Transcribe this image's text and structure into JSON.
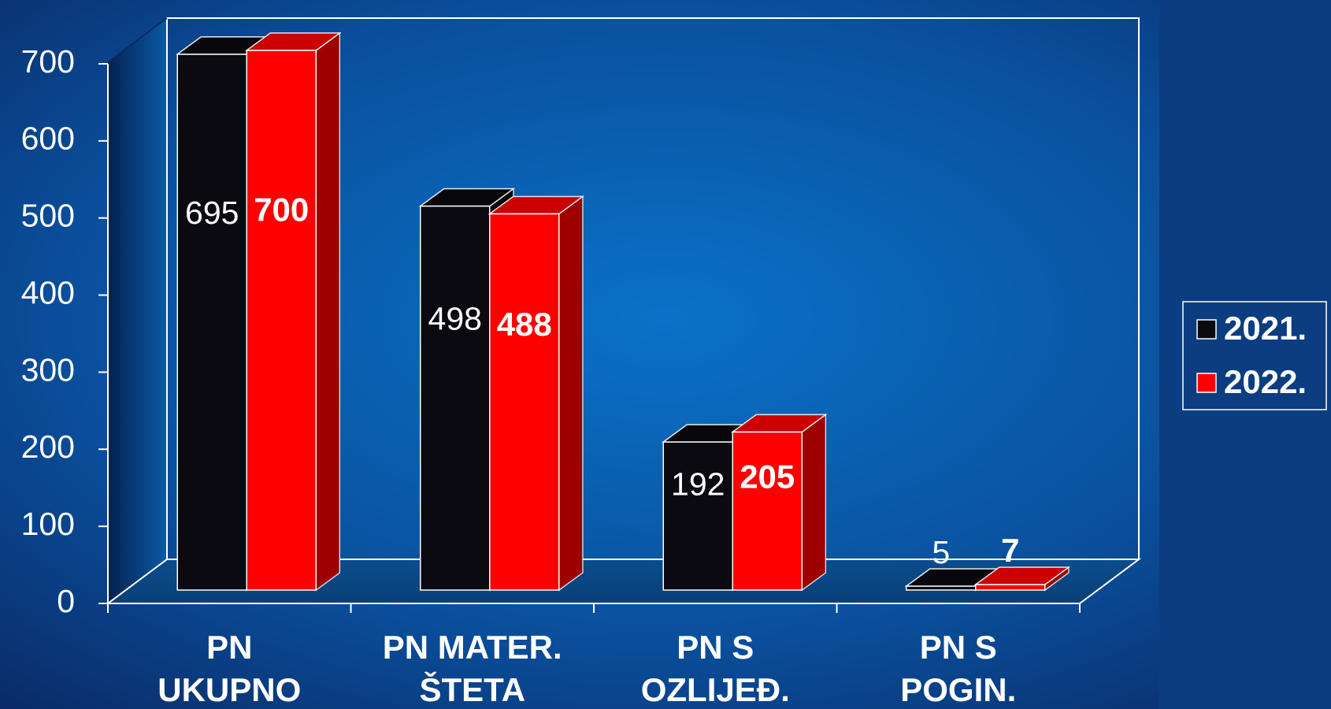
{
  "chart_data": {
    "type": "bar3d",
    "categories": [
      [
        "PN",
        "UKUPNO"
      ],
      [
        "PN MATER.",
        "ŠTETA"
      ],
      [
        "PN S",
        "OZLIJEĐ."
      ],
      [
        "PN S",
        "POGIN."
      ]
    ],
    "series": [
      {
        "name": "2021.",
        "color": "#0b0a10",
        "values": [
          695,
          498,
          192,
          5
        ]
      },
      {
        "name": "2022.",
        "color": "#ff0000",
        "values": [
          700,
          488,
          205,
          7
        ]
      }
    ],
    "ylim": [
      0,
      700
    ],
    "yticks": [
      0,
      100,
      200,
      300,
      400,
      500,
      600,
      700
    ],
    "legend": "right"
  }
}
